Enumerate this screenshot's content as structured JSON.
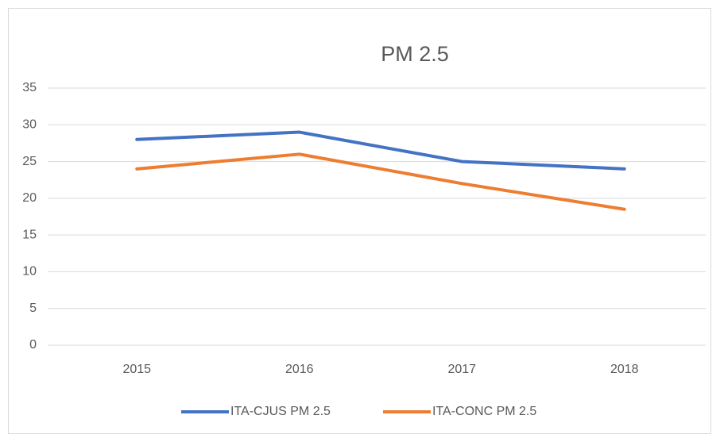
{
  "chart_data": {
    "type": "line",
    "title": "PM 2.5",
    "categories": [
      "2015",
      "2016",
      "2017",
      "2018"
    ],
    "series": [
      {
        "name": "ITA-CJUS PM 2.5",
        "color": "#4472c4",
        "values": [
          28,
          29,
          25,
          24
        ]
      },
      {
        "name": "ITA-CONC PM 2.5",
        "color": "#ed7d31",
        "values": [
          24,
          26,
          22,
          18.5
        ]
      }
    ],
    "ylim": [
      0,
      35
    ],
    "yticks": [
      0,
      5,
      10,
      15,
      20,
      25,
      30,
      35
    ],
    "grid": true,
    "legend": "bottom"
  }
}
